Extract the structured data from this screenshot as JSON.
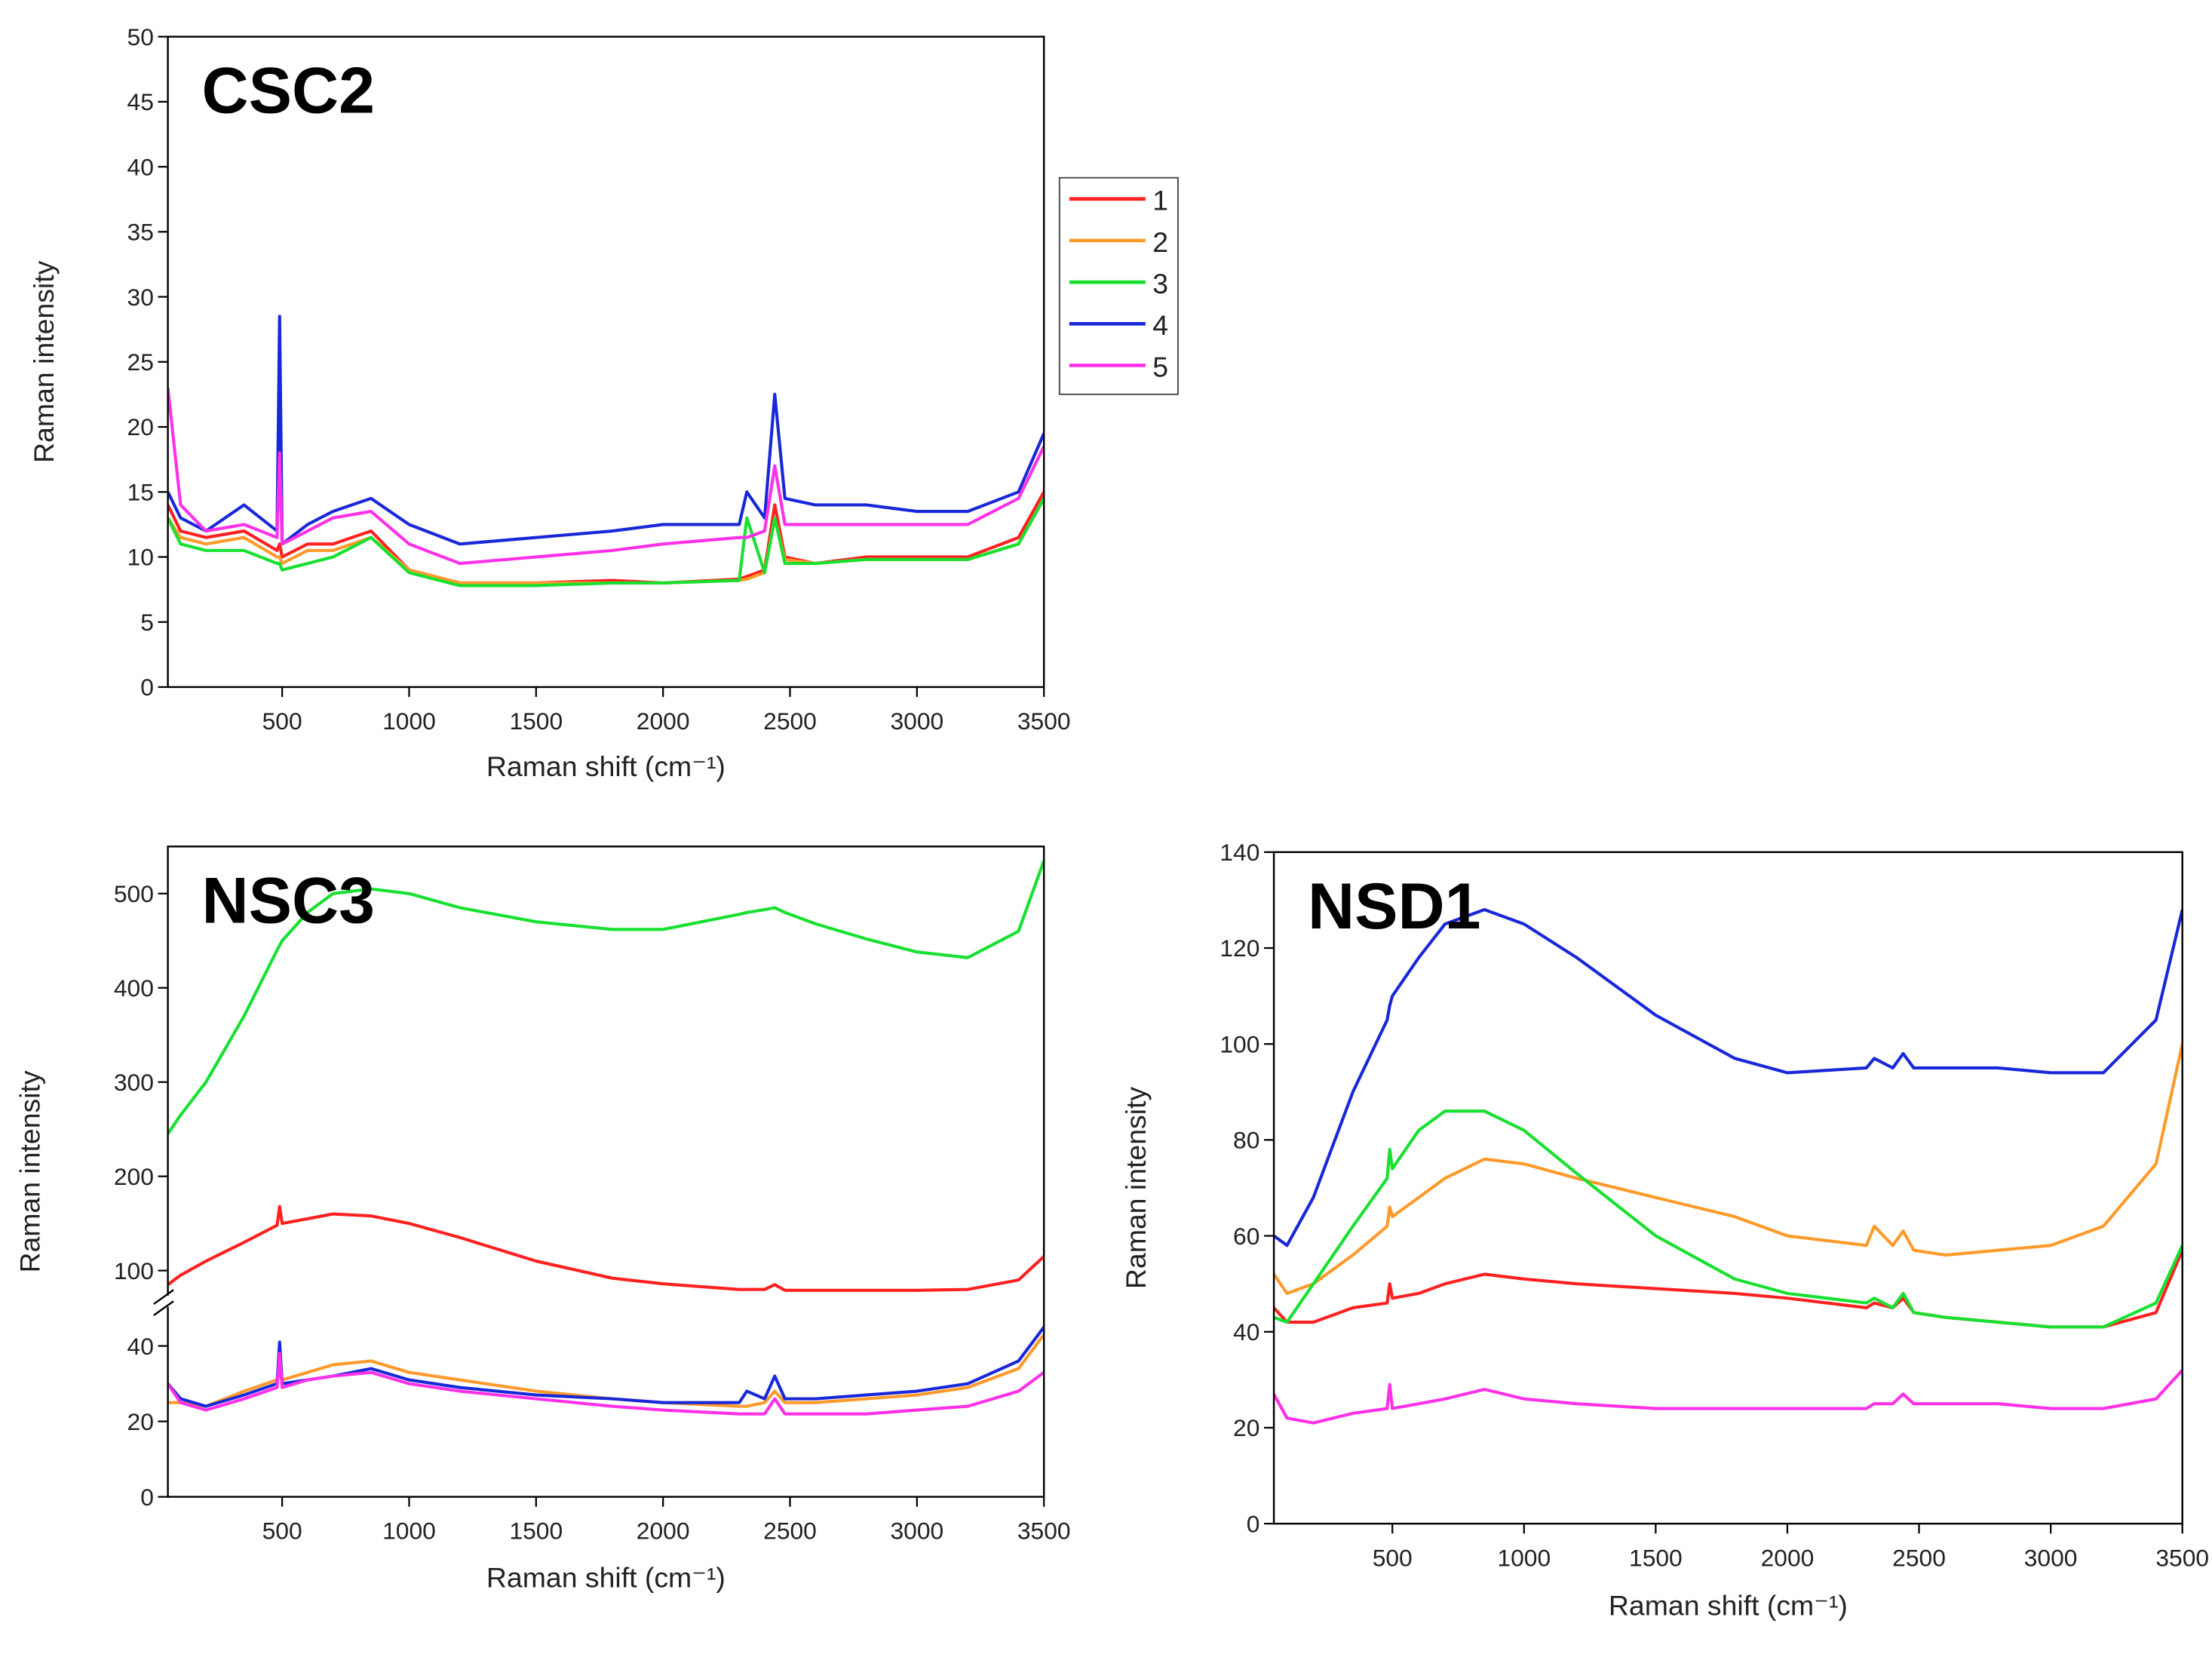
{
  "chart_data": [
    {
      "type": "line",
      "title": "CSC2",
      "x_label": "Raman shift (cm⁻¹)",
      "y_label": "Raman intensity",
      "x": [
        50,
        100,
        200,
        350,
        480,
        490,
        500,
        600,
        700,
        850,
        1000,
        1200,
        1500,
        1800,
        2000,
        2300,
        2330,
        2400,
        2440,
        2480,
        2600,
        2800,
        3000,
        3200,
        3400,
        3500
      ],
      "xlim": [
        50,
        3500
      ],
      "xticks": [
        500,
        1000,
        1500,
        2000,
        2500,
        3000,
        3500
      ],
      "ylim": [
        0,
        50
      ],
      "yticks": [
        0,
        5,
        10,
        15,
        20,
        25,
        30,
        35,
        40,
        45,
        50
      ],
      "legend": "outside right",
      "series": [
        {
          "name": "1",
          "color": "#ff2020",
          "values": [
            14,
            12,
            11.5,
            12,
            10.5,
            11,
            10,
            11,
            11,
            12,
            9,
            8,
            8,
            8.2,
            8,
            8.3,
            8.5,
            9,
            14,
            10,
            9.5,
            10,
            10,
            10,
            11.5,
            15
          ]
        },
        {
          "name": "2",
          "color": "#ff9a2a",
          "values": [
            13,
            11.5,
            11,
            11.5,
            10,
            10,
            9.5,
            10.5,
            10.5,
            11.5,
            9,
            8,
            8,
            8,
            8,
            8.2,
            8.3,
            8.8,
            13,
            9.8,
            9.5,
            9.8,
            9.8,
            9.8,
            11,
            14.5
          ]
        },
        {
          "name": "3",
          "color": "#18e030",
          "values": [
            13,
            11,
            10.5,
            10.5,
            9.5,
            9.5,
            9,
            9.5,
            10,
            11.5,
            8.8,
            7.8,
            7.8,
            8,
            8,
            8.2,
            13,
            8.8,
            13,
            9.5,
            9.5,
            9.8,
            9.8,
            9.8,
            11,
            14.5
          ]
        },
        {
          "name": "4",
          "color": "#1828d8",
          "values": [
            15,
            13,
            12,
            14,
            12,
            28.5,
            11,
            12.5,
            13.5,
            14.5,
            12.5,
            11,
            11.5,
            12,
            12.5,
            12.5,
            15,
            13,
            22.5,
            14.5,
            14,
            14,
            13.5,
            13.5,
            15,
            19.5
          ]
        },
        {
          "name": "5",
          "color": "#ff30e8",
          "values": [
            23,
            14,
            12,
            12.5,
            11.5,
            18,
            11,
            12,
            13,
            13.5,
            11,
            9.5,
            10,
            10.5,
            11,
            11.5,
            11.5,
            12,
            17,
            12.5,
            12.5,
            12.5,
            12.5,
            12.5,
            14.5,
            18.5
          ]
        }
      ]
    },
    {
      "type": "line",
      "title": "NSC3",
      "x_label": "Raman shift (cm⁻¹)",
      "y_label": "Raman intensity",
      "x": [
        50,
        100,
        200,
        350,
        480,
        490,
        500,
        600,
        700,
        850,
        1000,
        1200,
        1500,
        1800,
        2000,
        2300,
        2330,
        2400,
        2440,
        2480,
        2600,
        2800,
        3000,
        3200,
        3400,
        3500
      ],
      "xlim": [
        50,
        3500
      ],
      "xticks": [
        500,
        1000,
        1500,
        2000,
        2500,
        3000,
        3500
      ],
      "ylim": [
        0,
        550
      ],
      "ybreak": [
        50,
        75
      ],
      "yticks": [
        0,
        20,
        40,
        100,
        200,
        300,
        400,
        500
      ],
      "series": [
        {
          "name": "1",
          "color": "#ff2020",
          "values": [
            85,
            95,
            110,
            130,
            148,
            168,
            150,
            155,
            160,
            158,
            150,
            135,
            110,
            92,
            86,
            80,
            80,
            80,
            85,
            79,
            79,
            79,
            79,
            80,
            90,
            115
          ]
        },
        {
          "name": "2",
          "color": "#ff9a2a",
          "values": [
            25,
            25,
            24,
            28,
            31,
            32,
            31,
            33,
            35,
            36,
            33,
            31,
            28,
            26,
            25,
            24,
            24,
            25,
            28,
            25,
            25,
            26,
            27,
            29,
            34,
            43
          ]
        },
        {
          "name": "3",
          "color": "#18e030",
          "values": [
            245,
            265,
            300,
            370,
            440,
            445,
            450,
            480,
            500,
            505,
            500,
            485,
            470,
            462,
            462,
            478,
            480,
            483,
            485,
            480,
            468,
            452,
            438,
            432,
            460,
            535
          ]
        },
        {
          "name": "4",
          "color": "#1828d8",
          "values": [
            30,
            26,
            24,
            27,
            30,
            41,
            30,
            31,
            32,
            34,
            31,
            29,
            27,
            26,
            25,
            25,
            28,
            26,
            32,
            26,
            26,
            27,
            28,
            30,
            36,
            45
          ]
        },
        {
          "name": "5",
          "color": "#ff30e8",
          "values": [
            30,
            25,
            23,
            26,
            29,
            38,
            29,
            31,
            32,
            33,
            30,
            28,
            26,
            24,
            23,
            22,
            22,
            22,
            26,
            22,
            22,
            22,
            23,
            24,
            28,
            33
          ]
        }
      ]
    },
    {
      "type": "line",
      "title": "NSD1",
      "x_label": "Raman shift (cm⁻¹)",
      "y_label": "Raman intensity",
      "x": [
        50,
        100,
        200,
        350,
        480,
        490,
        500,
        600,
        700,
        850,
        1000,
        1200,
        1500,
        1800,
        2000,
        2300,
        2330,
        2400,
        2440,
        2480,
        2600,
        2800,
        3000,
        3200,
        3400,
        3500
      ],
      "xlim": [
        50,
        3500
      ],
      "xticks": [
        500,
        1000,
        1500,
        2000,
        2500,
        3000,
        3500
      ],
      "ylim": [
        0,
        140
      ],
      "yticks": [
        0,
        20,
        40,
        60,
        80,
        100,
        120,
        140
      ],
      "series": [
        {
          "name": "1",
          "color": "#ff2020",
          "values": [
            45,
            42,
            42,
            45,
            46,
            50,
            47,
            48,
            50,
            52,
            51,
            50,
            49,
            48,
            47,
            45,
            46,
            45,
            47,
            44,
            43,
            42,
            41,
            41,
            44,
            57
          ]
        },
        {
          "name": "2",
          "color": "#ff9a2a",
          "values": [
            52,
            48,
            50,
            56,
            62,
            66,
            64,
            68,
            72,
            76,
            75,
            72,
            68,
            64,
            60,
            58,
            62,
            58,
            61,
            57,
            56,
            57,
            58,
            62,
            75,
            100
          ]
        },
        {
          "name": "3",
          "color": "#18e030",
          "values": [
            43,
            42,
            50,
            62,
            72,
            78,
            74,
            82,
            86,
            86,
            82,
            73,
            60,
            51,
            48,
            46,
            47,
            45,
            48,
            44,
            43,
            42,
            41,
            41,
            46,
            58
          ]
        },
        {
          "name": "4",
          "color": "#1828d8",
          "values": [
            60,
            58,
            68,
            90,
            105,
            108,
            110,
            118,
            125,
            128,
            125,
            118,
            106,
            97,
            94,
            95,
            97,
            95,
            98,
            95,
            95,
            95,
            94,
            94,
            105,
            128
          ]
        },
        {
          "name": "5",
          "color": "#ff30e8",
          "values": [
            27,
            22,
            21,
            23,
            24,
            29,
            24,
            25,
            26,
            28,
            26,
            25,
            24,
            24,
            24,
            24,
            25,
            25,
            27,
            25,
            25,
            25,
            24,
            24,
            26,
            32
          ]
        }
      ]
    }
  ]
}
